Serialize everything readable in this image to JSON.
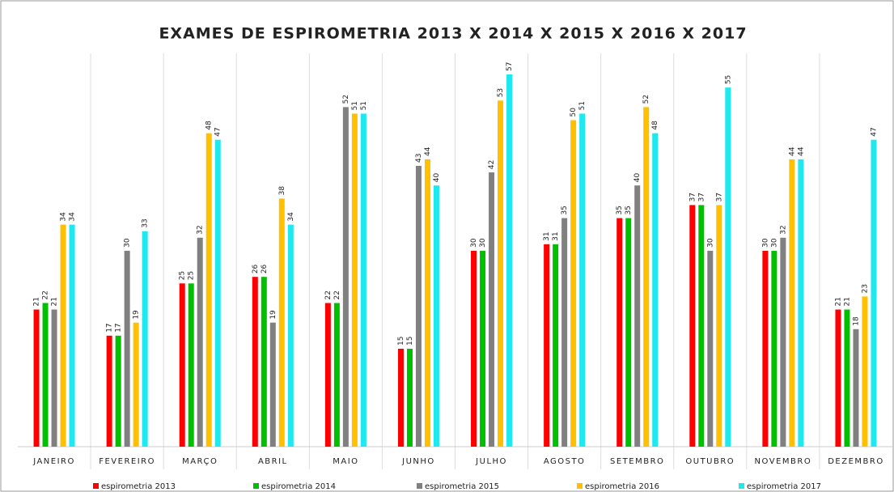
{
  "chart_data": {
    "type": "bar",
    "title": "EXAMES DE ESPIROMETRIA 2013 X 2014 X 2015 X 2016 X 2017",
    "categories": [
      "JANEIRO",
      "FEVEREIRO",
      "MARÇO",
      "ABRIL",
      "MAIO",
      "JUNHO",
      "JULHO",
      "AGOSTO",
      "SETEMBRO",
      "OUTUBRO",
      "NOVEMBRO",
      "DEZEMBRO"
    ],
    "series": [
      {
        "name": "espirometria 2013",
        "color": "#ff0000",
        "values": [
          21,
          17,
          25,
          26,
          22,
          15,
          30,
          31,
          35,
          37,
          30,
          21
        ]
      },
      {
        "name": "espirometria 2014",
        "color": "#00c000",
        "values": [
          22,
          17,
          25,
          26,
          22,
          15,
          30,
          31,
          35,
          37,
          30,
          21
        ]
      },
      {
        "name": "espirometria 2015",
        "color": "#808080",
        "values": [
          21,
          30,
          32,
          19,
          52,
          43,
          42,
          35,
          40,
          30,
          32,
          18
        ]
      },
      {
        "name": "espirometria 2016",
        "color": "#ffc000",
        "values": [
          34,
          19,
          48,
          38,
          51,
          44,
          53,
          50,
          52,
          37,
          44,
          23
        ]
      },
      {
        "name": "espirometria 2017",
        "color": "#1ee8f0",
        "values": [
          34,
          33,
          47,
          34,
          51,
          40,
          57,
          51,
          48,
          55,
          44,
          47
        ]
      }
    ],
    "legend": "bottom"
  }
}
